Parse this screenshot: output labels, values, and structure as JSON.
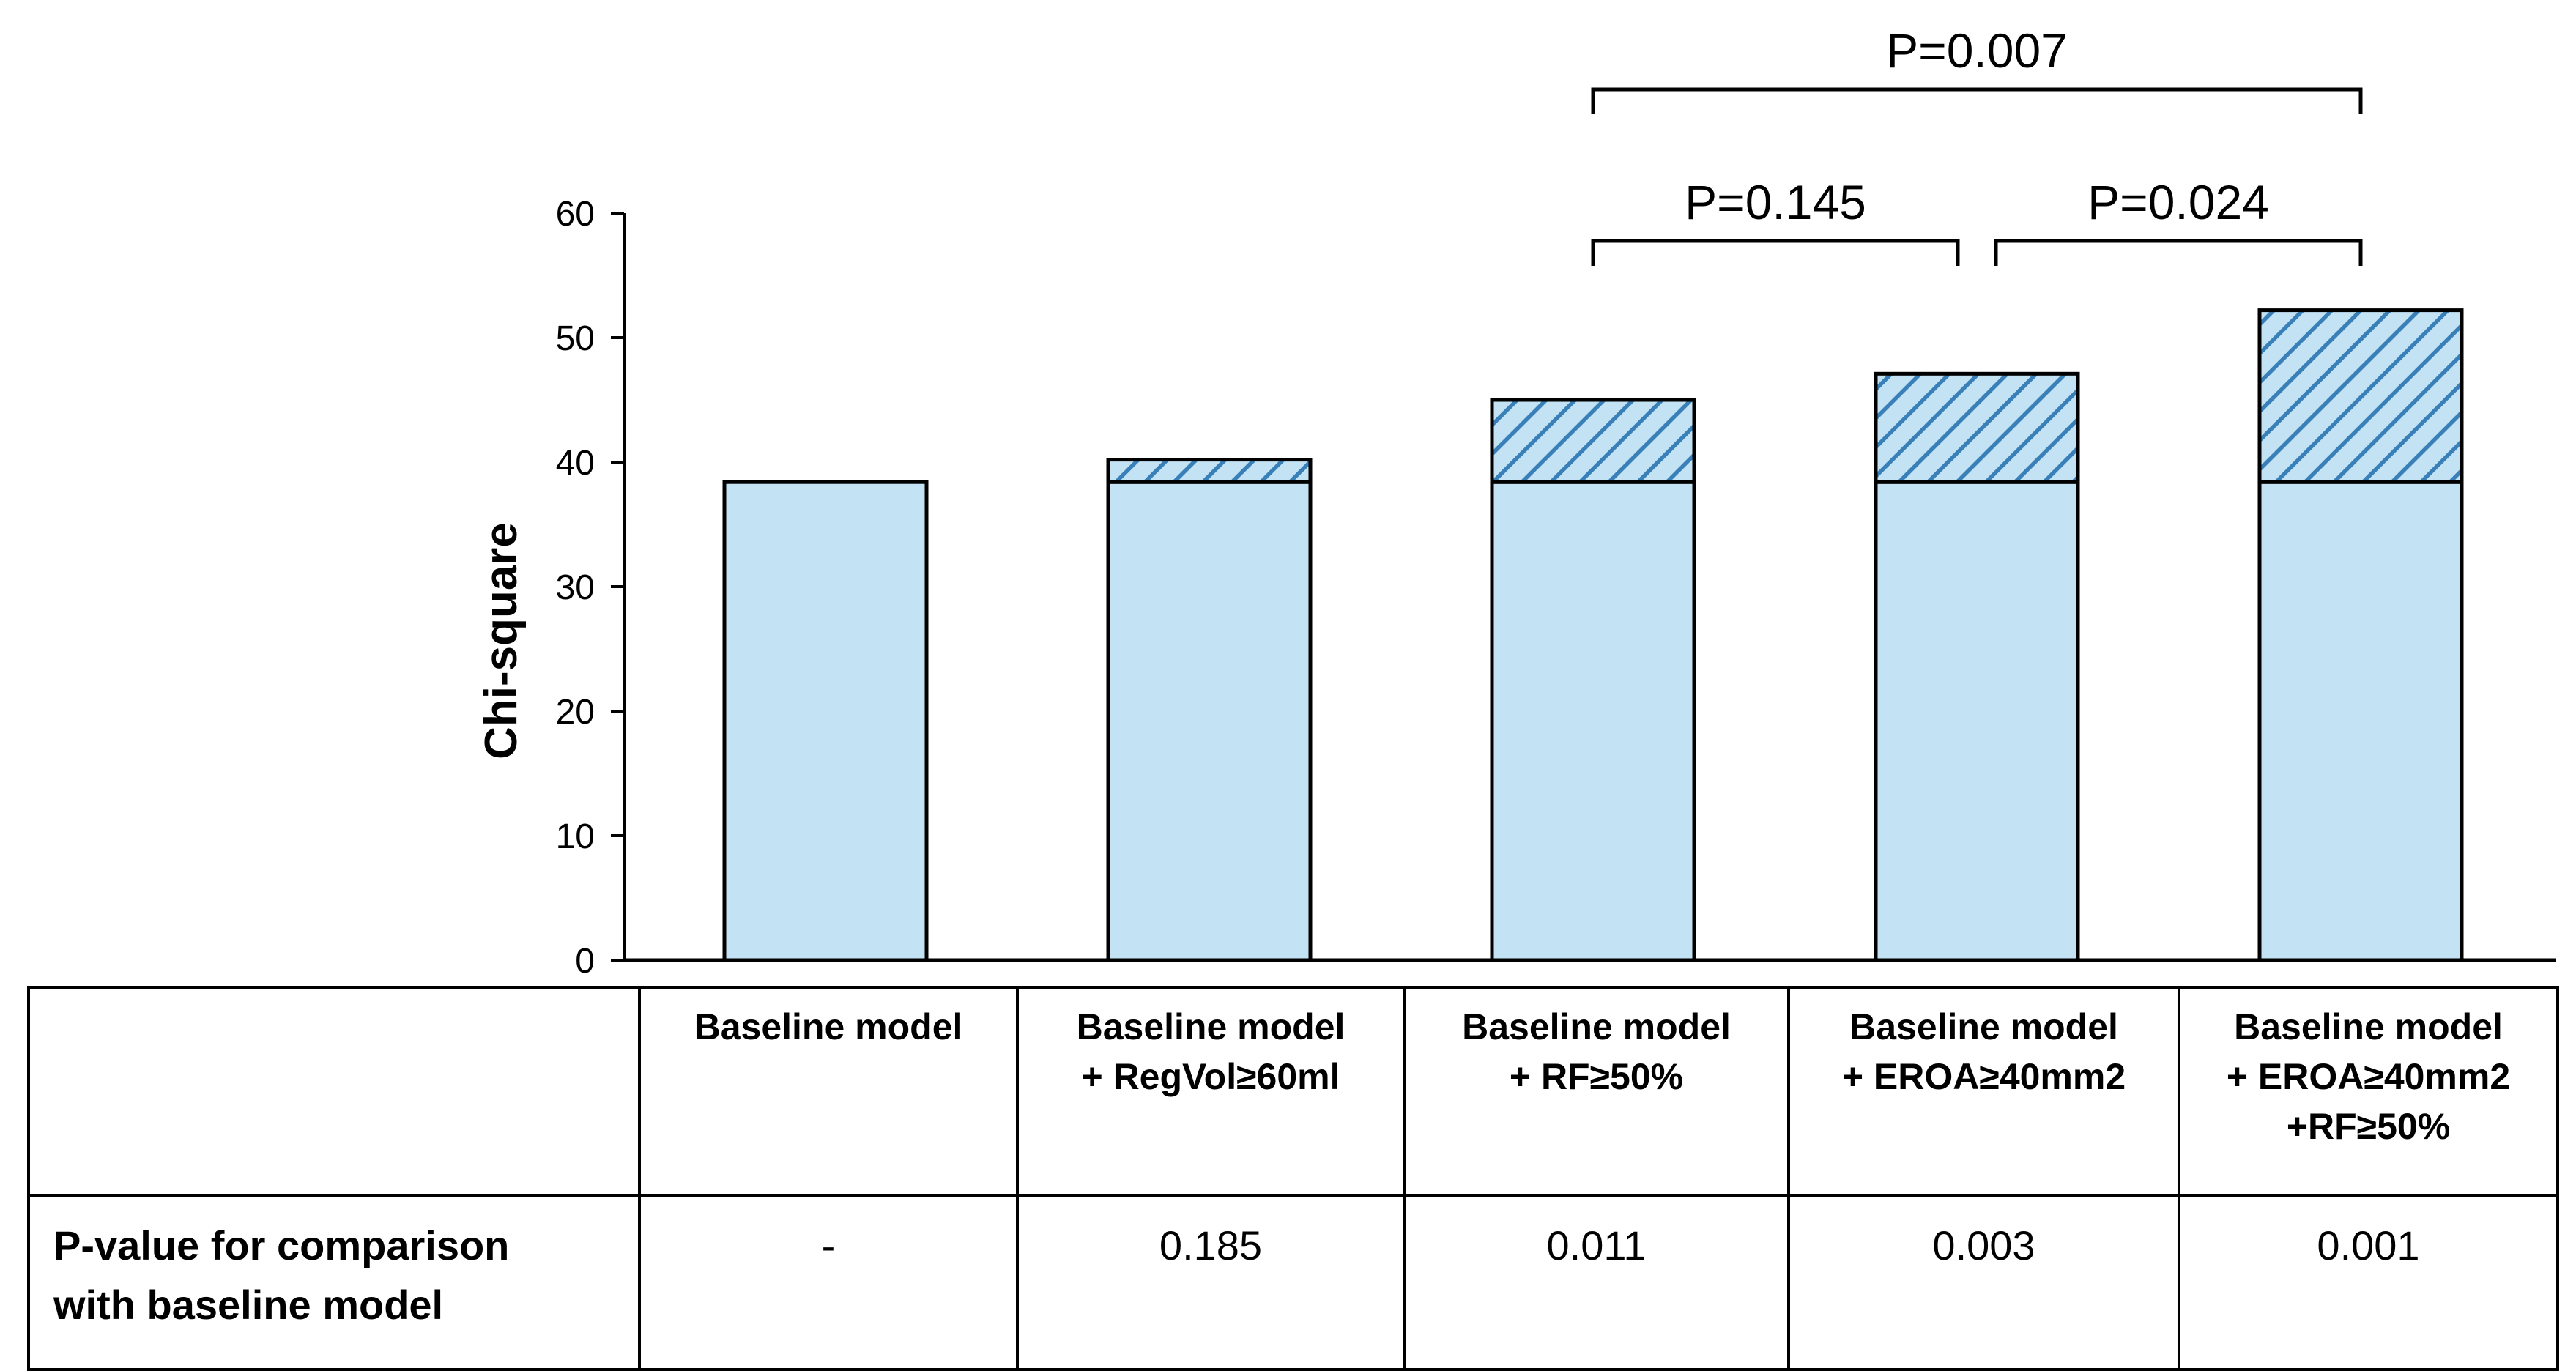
{
  "chart_data": {
    "type": "bar",
    "stacked": true,
    "categories": [
      "Baseline model",
      "Baseline model + RegVol≥60ml",
      "Baseline model + RF≥50%",
      "Baseline model + EROA≥40mm2",
      "Baseline model + EROA≥40mm2 +RF≥50%"
    ],
    "series": [
      {
        "values": [
          38.4,
          38.4,
          38.4,
          38.4,
          38.4
        ],
        "color": "#c3e3f5",
        "pattern": "solid"
      },
      {
        "values": [
          0,
          1.8,
          6.6,
          8.7,
          13.8
        ],
        "color": "#c3e3f5",
        "pattern": "diagonal-hatch",
        "hatch_color": "#3a80b8"
      }
    ],
    "ylabel": "Chi-square",
    "ylim": [
      0,
      60
    ],
    "yticks": [
      "0",
      "10",
      "20",
      "30",
      "40",
      "50",
      "60"
    ],
    "grid": false,
    "legend": "none",
    "annotations": [
      {
        "text": "P=0.145",
        "from_category": 2,
        "to_category": 3,
        "level": 1
      },
      {
        "text": "P=0.024",
        "from_category": 3,
        "to_category": 4,
        "level": 1
      },
      {
        "text": "P=0.007",
        "from_category": 2,
        "to_category": 4,
        "level": 2
      }
    ]
  },
  "table": {
    "headers": [
      "",
      [
        "Baseline model"
      ],
      [
        "Baseline model",
        "+ RegVol≥60ml"
      ],
      [
        "Baseline model",
        "+ RF≥50%"
      ],
      [
        "Baseline model",
        "+ EROA≥40mm2"
      ],
      [
        "Baseline model",
        "+ EROA≥40mm2",
        "+RF≥50%"
      ]
    ],
    "row_label": [
      "P-value for comparison",
      "with baseline model"
    ],
    "p_values": [
      "-",
      "0.185",
      "0.011",
      "0.003",
      "0.001"
    ]
  }
}
